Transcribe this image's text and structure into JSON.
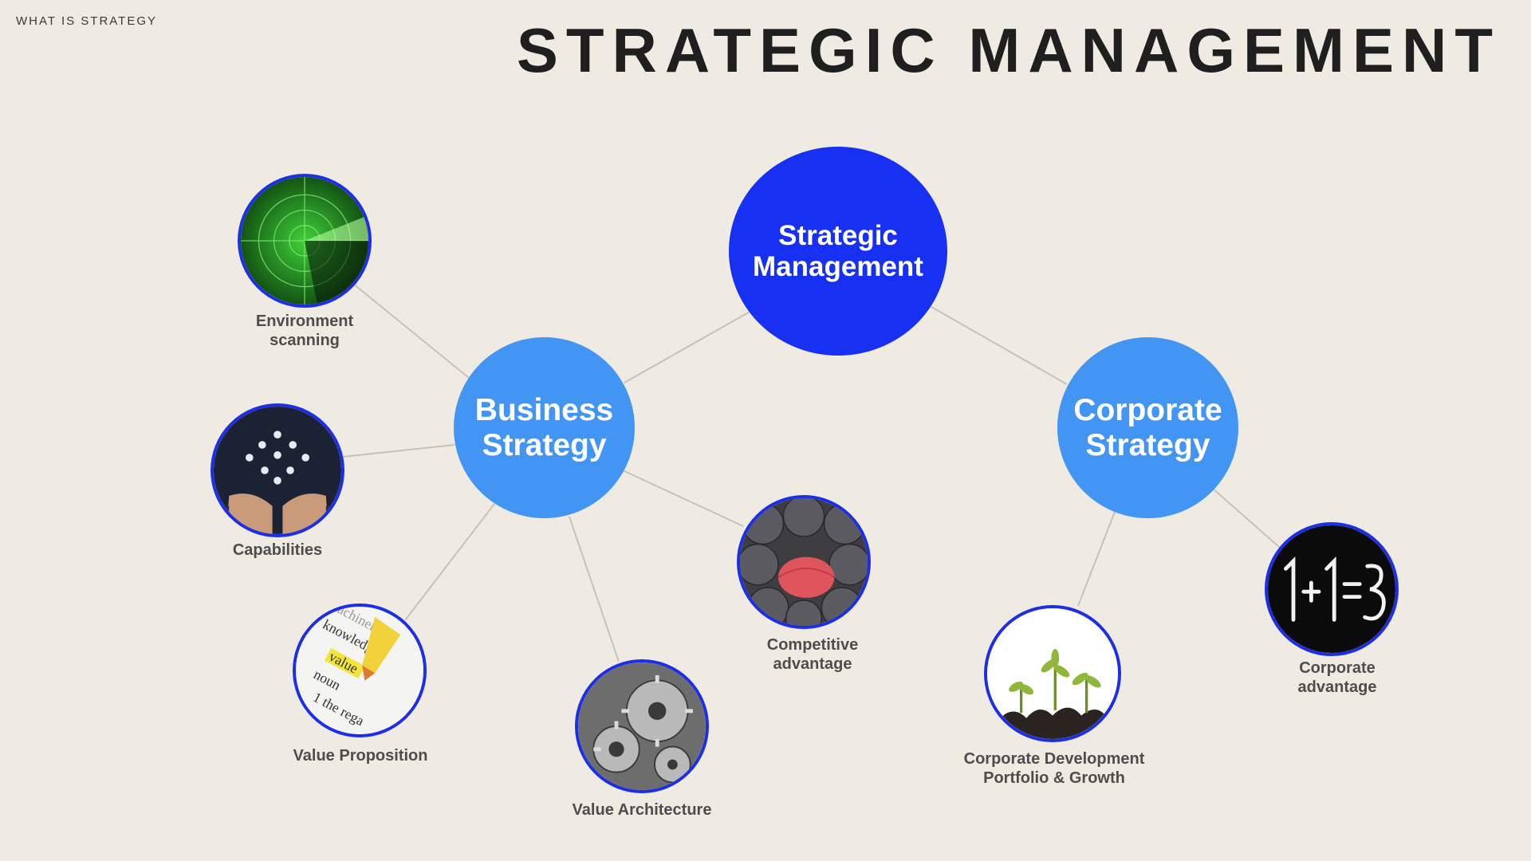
{
  "header": {
    "kicker": "WHAT IS STRATEGY",
    "title": "STRATEGIC MANAGEMENT"
  },
  "hubs": {
    "main": "Strategic\nManagement",
    "business": "Business\nStrategy",
    "corporate": "Corporate\nStrategy"
  },
  "nodes": {
    "environment": {
      "label": "Environment\nscanning",
      "icon": "radar-icon"
    },
    "capabilities": {
      "label": "Capabilities",
      "icon": "people-in-hands-icon"
    },
    "value_proposition": {
      "label": "Value Proposition",
      "icon": "highlighted-word-icon"
    },
    "value_architecture": {
      "label": "Value Architecture",
      "icon": "gears-icon"
    },
    "competitive_advantage": {
      "label": "Competitive\nadvantage",
      "icon": "red-umbrella-icon"
    },
    "corporate_development": {
      "label": "Corporate Development\nPortfolio & Growth",
      "icon": "sprouts-icon"
    },
    "corporate_advantage": {
      "label": "Corporate\nadvantage",
      "icon": "one-plus-one-equals-three-icon"
    }
  },
  "colors": {
    "background": "#efebe2",
    "hub_main": "#1730f2",
    "hub_sub": "#4395f4",
    "thumb_border": "#1c2fe6",
    "connector": "#c4c2bb",
    "label": "#4d4d4d"
  }
}
